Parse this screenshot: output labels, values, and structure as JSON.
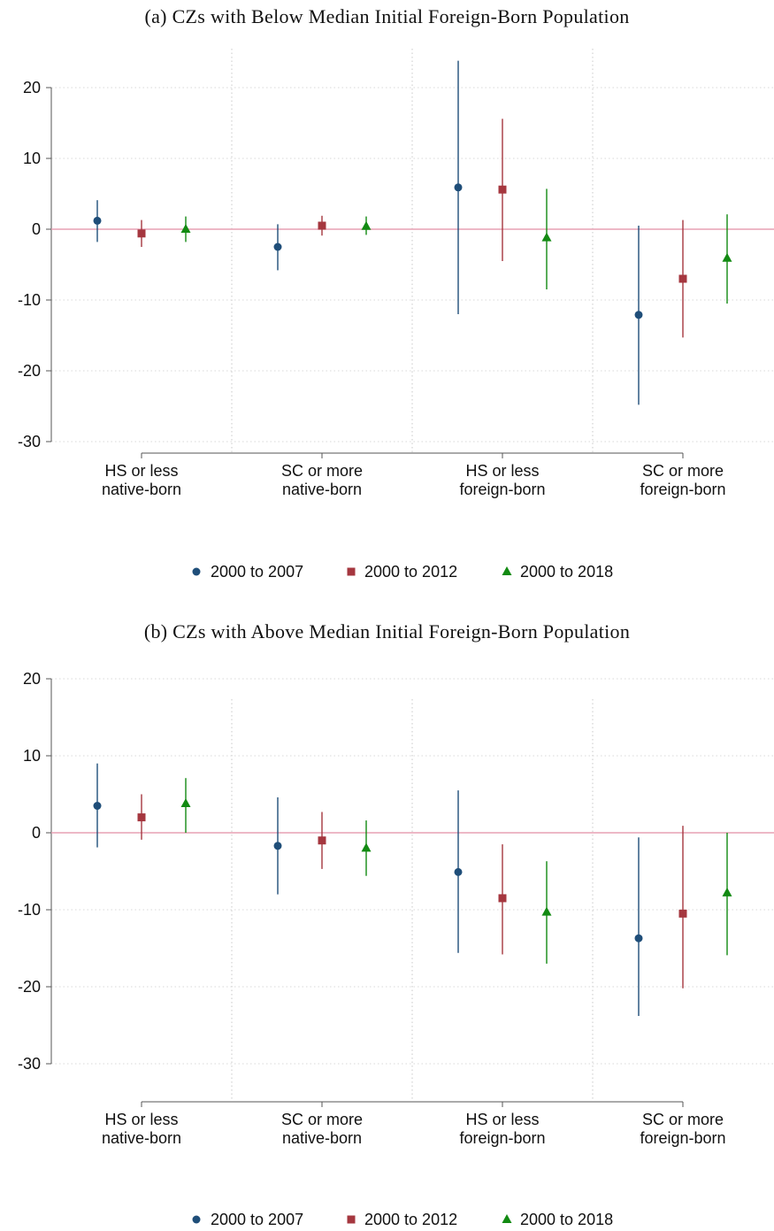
{
  "chart_data": [
    {
      "type": "scatter",
      "title": "(a) CZs with Below Median Initial Foreign-Born Population",
      "ylim": [
        -30,
        20
      ],
      "yticks": [
        -30,
        -20,
        -10,
        0,
        10,
        20
      ],
      "ytick_labels": [
        "-30",
        "-20",
        "-10",
        "0",
        "10",
        "20"
      ],
      "reference_line": 0,
      "reference_color": "#e7a1b3",
      "categories": [
        [
          "HS or less",
          "native-born"
        ],
        [
          "SC or more",
          "native-born"
        ],
        [
          "HS or less",
          "foreign-born"
        ],
        [
          "SC or more",
          "foreign-born"
        ]
      ],
      "series": [
        {
          "name": "2000 to 2007",
          "marker": "circle",
          "color": "#1f4e79",
          "values": [
            1.2,
            -2.5,
            5.9,
            -12.1
          ],
          "ci": [
            [
              -1.8,
              4.1
            ],
            [
              -5.8,
              0.7
            ],
            [
              -12.0,
              23.8
            ],
            [
              -24.8,
              0.5
            ]
          ]
        },
        {
          "name": "2000 to 2012",
          "marker": "square",
          "color": "#a5373f",
          "values": [
            -0.6,
            0.5,
            5.6,
            -7.0
          ],
          "ci": [
            [
              -2.5,
              1.3
            ],
            [
              -0.9,
              1.9
            ],
            [
              -4.5,
              15.6
            ],
            [
              -15.3,
              1.3
            ]
          ]
        },
        {
          "name": "2000 to 2018",
          "marker": "triangle",
          "color": "#128a12",
          "values": [
            0.0,
            0.4,
            -1.2,
            -4.1
          ],
          "ci": [
            [
              -1.8,
              1.8
            ],
            [
              -0.8,
              1.8
            ],
            [
              -8.5,
              5.7
            ],
            [
              -10.5,
              2.1
            ]
          ]
        }
      ]
    },
    {
      "type": "scatter",
      "title": "(b) CZs with Above Median Initial Foreign-Born Population",
      "ylim": [
        -30,
        20
      ],
      "yticks": [
        -30,
        -20,
        -10,
        0,
        10,
        20
      ],
      "ytick_labels": [
        "-30",
        "-20",
        "-10",
        "0",
        "10",
        "20"
      ],
      "reference_line": 0,
      "reference_color": "#e7a1b3",
      "categories": [
        [
          "HS or less",
          "native-born"
        ],
        [
          "SC or more",
          "native-born"
        ],
        [
          "HS or less",
          "foreign-born"
        ],
        [
          "SC or more",
          "foreign-born"
        ]
      ],
      "series": [
        {
          "name": "2000 to 2007",
          "marker": "circle",
          "color": "#1f4e79",
          "values": [
            3.5,
            -1.7,
            -5.1,
            -13.7
          ],
          "ci": [
            [
              -1.9,
              9.0
            ],
            [
              -8.0,
              4.6
            ],
            [
              -15.6,
              5.5
            ],
            [
              -23.8,
              -0.6
            ]
          ]
        },
        {
          "name": "2000 to 2012",
          "marker": "square",
          "color": "#a5373f",
          "values": [
            2.0,
            -1.0,
            -8.5,
            -10.5
          ],
          "ci": [
            [
              -0.9,
              5.0
            ],
            [
              -4.7,
              2.7
            ],
            [
              -15.8,
              -1.5
            ],
            [
              -20.2,
              0.9
            ]
          ]
        },
        {
          "name": "2000 to 2018",
          "marker": "triangle",
          "color": "#128a12",
          "values": [
            3.8,
            -2.0,
            -10.3,
            -7.8
          ],
          "ci": [
            [
              0.0,
              7.1
            ],
            [
              -5.6,
              1.6
            ],
            [
              -17.0,
              -3.7
            ],
            [
              -15.9,
              0.0
            ]
          ]
        }
      ]
    }
  ]
}
